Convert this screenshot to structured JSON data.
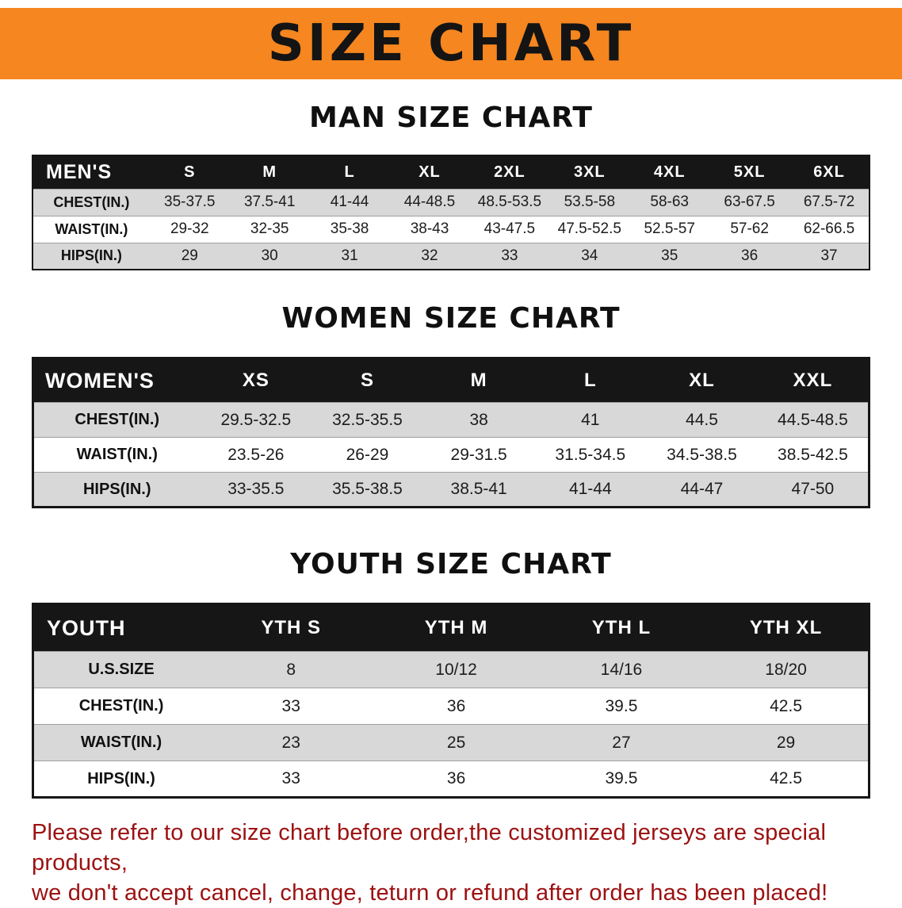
{
  "banner": {
    "title": "SIZE CHART",
    "bg_color": "#F6861F",
    "text_color": "#141414"
  },
  "sections": {
    "men": {
      "heading": "MAN SIZE CHART",
      "table": {
        "header": [
          "MEN'S",
          "S",
          "M",
          "L",
          "XL",
          "2XL",
          "3XL",
          "4XL",
          "5XL",
          "6XL"
        ],
        "rows": [
          [
            "CHEST(IN.)",
            "35-37.5",
            "37.5-41",
            "41-44",
            "44-48.5",
            "48.5-53.5",
            "53.5-58",
            "58-63",
            "63-67.5",
            "67.5-72"
          ],
          [
            "WAIST(IN.)",
            "29-32",
            "32-35",
            "35-38",
            "38-43",
            "43-47.5",
            "47.5-52.5",
            "52.5-57",
            "57-62",
            "62-66.5"
          ],
          [
            "HIPS(IN.)",
            "29",
            "30",
            "31",
            "32",
            "33",
            "34",
            "35",
            "36",
            "37"
          ]
        ]
      }
    },
    "women": {
      "heading": "WOMEN SIZE CHART",
      "table": {
        "header": [
          "WOMEN'S",
          "XS",
          "S",
          "M",
          "L",
          "XL",
          "XXL"
        ],
        "rows": [
          [
            "CHEST(IN.)",
            "29.5-32.5",
            "32.5-35.5",
            "38",
            "41",
            "44.5",
            "44.5-48.5"
          ],
          [
            "WAIST(IN.)",
            "23.5-26",
            "26-29",
            "29-31.5",
            "31.5-34.5",
            "34.5-38.5",
            "38.5-42.5"
          ],
          [
            "HIPS(IN.)",
            "33-35.5",
            "35.5-38.5",
            "38.5-41",
            "41-44",
            "44-47",
            "47-50"
          ]
        ]
      }
    },
    "youth": {
      "heading": "YOUTH SIZE CHART",
      "table": {
        "header": [
          "YOUTH",
          "YTH S",
          "YTH M",
          "YTH L",
          "YTH XL"
        ],
        "rows": [
          [
            "U.S.SIZE",
            "8",
            "10/12",
            "14/16",
            "18/20"
          ],
          [
            "CHEST(IN.)",
            "33",
            "36",
            "39.5",
            "42.5"
          ],
          [
            "WAIST(IN.)",
            "23",
            "25",
            "27",
            "29"
          ],
          [
            "HIPS(IN.)",
            "33",
            "36",
            "39.5",
            "42.5"
          ]
        ]
      }
    }
  },
  "disclaimer": {
    "line1": "Please refer to our size chart before order,the customized jerseys are special products,",
    "line2": "we don't accept cancel, change, teturn or refund after order has been placed!",
    "color": "#9c1111"
  }
}
